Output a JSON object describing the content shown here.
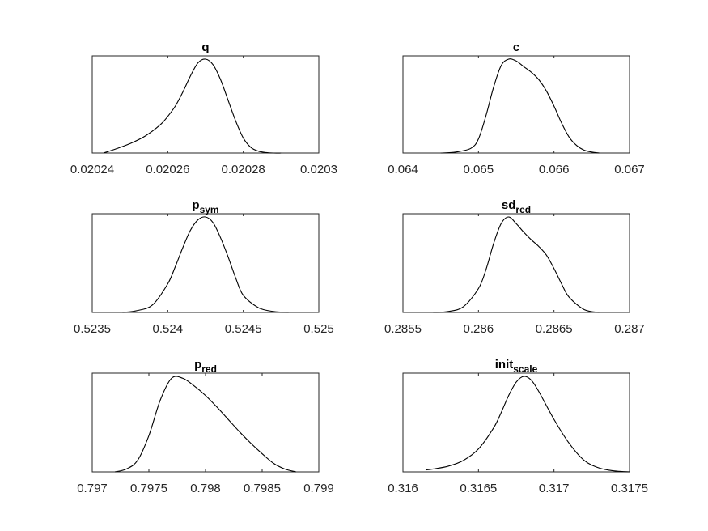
{
  "chart_data": [
    {
      "type": "line",
      "title": "q",
      "title_sub": "",
      "xlim": [
        0.02024,
        0.0203
      ],
      "xticks": [
        0.02024,
        0.02026,
        0.02028,
        0.0203
      ],
      "xtick_labels": [
        "0.02024",
        "0.02026",
        "0.02028",
        "0.0203"
      ],
      "ylim": [
        0,
        1
      ],
      "yticks_shown": false,
      "x": [
        0.020243,
        0.020246,
        0.02025,
        0.020254,
        0.020258,
        0.02026,
        0.020262,
        0.020264,
        0.020266,
        0.020268,
        0.02027,
        0.020272,
        0.020274,
        0.020276,
        0.020278,
        0.02028,
        0.020282,
        0.020284,
        0.020286,
        0.020288,
        0.02029
      ],
      "y": [
        0.0,
        0.04,
        0.1,
        0.18,
        0.3,
        0.39,
        0.5,
        0.65,
        0.82,
        0.96,
        1.0,
        0.94,
        0.78,
        0.56,
        0.34,
        0.16,
        0.06,
        0.02,
        0.005,
        0.0,
        0.0
      ]
    },
    {
      "type": "line",
      "title": "c",
      "title_sub": "",
      "xlim": [
        0.064,
        0.067
      ],
      "xticks": [
        0.064,
        0.065,
        0.066,
        0.067
      ],
      "xtick_labels": [
        "0.064",
        "0.065",
        "0.066",
        "0.067"
      ],
      "ylim": [
        0,
        1
      ],
      "yticks_shown": false,
      "x": [
        0.0645,
        0.0647,
        0.0649,
        0.065,
        0.0651,
        0.0652,
        0.0653,
        0.0654,
        0.0655,
        0.0656,
        0.0657,
        0.0658,
        0.0659,
        0.066,
        0.0661,
        0.0662,
        0.0663,
        0.0664,
        0.0665,
        0.0666
      ],
      "y": [
        0.0,
        0.01,
        0.05,
        0.15,
        0.4,
        0.7,
        0.93,
        1.0,
        0.98,
        0.92,
        0.86,
        0.78,
        0.66,
        0.5,
        0.32,
        0.17,
        0.08,
        0.03,
        0.01,
        0.0
      ]
    },
    {
      "type": "line",
      "title": "p",
      "title_sub": "sym",
      "xlim": [
        0.5235,
        0.525
      ],
      "xticks": [
        0.5235,
        0.524,
        0.5245,
        0.525
      ],
      "xtick_labels": [
        "0.5235",
        "0.524",
        "0.5245",
        "0.525"
      ],
      "ylim": [
        0,
        1
      ],
      "yticks_shown": false,
      "x": [
        0.5237,
        0.5238,
        0.5239,
        0.524,
        0.52405,
        0.5241,
        0.52415,
        0.5242,
        0.52425,
        0.5243,
        0.52435,
        0.5244,
        0.52445,
        0.5245,
        0.5246,
        0.5247,
        0.5248
      ],
      "y": [
        0.0,
        0.02,
        0.08,
        0.3,
        0.48,
        0.68,
        0.86,
        0.97,
        1.0,
        0.94,
        0.78,
        0.58,
        0.36,
        0.18,
        0.05,
        0.01,
        0.0
      ]
    },
    {
      "type": "line",
      "title": "sd",
      "title_sub": "red",
      "xlim": [
        0.2855,
        0.287
      ],
      "xticks": [
        0.2855,
        0.286,
        0.2865,
        0.287
      ],
      "xtick_labels": [
        "0.2855",
        "0.286",
        "0.2865",
        "0.287"
      ],
      "ylim": [
        0,
        1
      ],
      "yticks_shown": false,
      "x": [
        0.2857,
        0.2858,
        0.2859,
        0.286,
        0.28605,
        0.2861,
        0.28615,
        0.2862,
        0.28625,
        0.2863,
        0.28635,
        0.2864,
        0.28645,
        0.2865,
        0.28655,
        0.2866,
        0.2867,
        0.2868
      ],
      "y": [
        0.0,
        0.01,
        0.06,
        0.25,
        0.45,
        0.72,
        0.93,
        1.0,
        0.93,
        0.84,
        0.76,
        0.69,
        0.6,
        0.46,
        0.3,
        0.16,
        0.03,
        0.0
      ]
    },
    {
      "type": "line",
      "title": "p",
      "title_sub": "red",
      "xlim": [
        0.797,
        0.799
      ],
      "xticks": [
        0.797,
        0.7975,
        0.798,
        0.7985,
        0.799
      ],
      "xtick_labels": [
        "0.797",
        "0.7975",
        "0.798",
        "0.7985",
        "0.799"
      ],
      "ylim": [
        0,
        1
      ],
      "yticks_shown": false,
      "x": [
        0.7972,
        0.7973,
        0.7974,
        0.7975,
        0.7976,
        0.7977,
        0.7978,
        0.7979,
        0.798,
        0.7981,
        0.7982,
        0.7983,
        0.7984,
        0.7985,
        0.7986,
        0.7987,
        0.7988
      ],
      "y": [
        0.0,
        0.03,
        0.12,
        0.38,
        0.75,
        0.98,
        0.98,
        0.9,
        0.8,
        0.68,
        0.55,
        0.42,
        0.3,
        0.19,
        0.09,
        0.03,
        0.0
      ]
    },
    {
      "type": "line",
      "title": "init",
      "title_sub": "scale",
      "xlim": [
        0.316,
        0.3175
      ],
      "xticks": [
        0.316,
        0.3165,
        0.317,
        0.3175
      ],
      "xtick_labels": [
        "0.316",
        "0.3165",
        "0.317",
        "0.3175"
      ],
      "ylim": [
        0,
        1
      ],
      "yticks_shown": false,
      "x": [
        0.31615,
        0.3162,
        0.3163,
        0.3164,
        0.3165,
        0.3166,
        0.31665,
        0.3167,
        0.31675,
        0.3168,
        0.31685,
        0.3169,
        0.317,
        0.3171,
        0.3172,
        0.3173,
        0.3174,
        0.3175
      ],
      "y": [
        0.02,
        0.03,
        0.06,
        0.12,
        0.24,
        0.46,
        0.62,
        0.8,
        0.94,
        1.0,
        0.96,
        0.84,
        0.55,
        0.3,
        0.12,
        0.04,
        0.01,
        0.0
      ]
    }
  ]
}
